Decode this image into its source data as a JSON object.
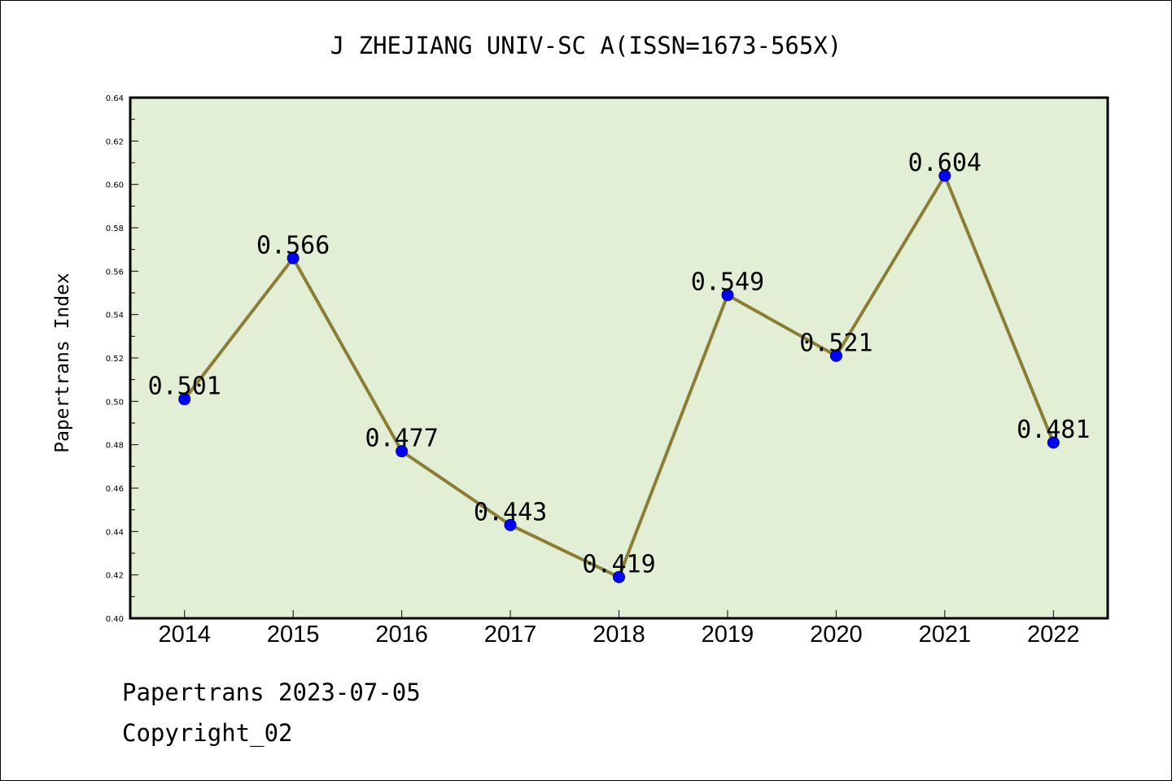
{
  "chart_data": {
    "type": "line",
    "title": "J ZHEJIANG UNIV-SC A(ISSN=1673-565X)",
    "xlabel": "",
    "ylabel": "Papertrans Index",
    "categories": [
      "2014",
      "2015",
      "2016",
      "2017",
      "2018",
      "2019",
      "2020",
      "2021",
      "2022"
    ],
    "series": [
      {
        "values": [
          0.501,
          0.566,
          0.477,
          0.443,
          0.419,
          0.549,
          0.521,
          0.604,
          0.481
        ]
      }
    ],
    "data_labels": [
      "0.501",
      "0.566",
      "0.477",
      "0.443",
      "0.419",
      "0.549",
      "0.521",
      "0.604",
      "0.481"
    ],
    "ylim": [
      0.4,
      0.64
    ],
    "yticks": [
      "0.40",
      "0.42",
      "0.44",
      "0.46",
      "0.48",
      "0.50",
      "0.52",
      "0.54",
      "0.56",
      "0.58",
      "0.60",
      "0.62",
      "0.64"
    ],
    "grid": false,
    "legend": "none",
    "colors": {
      "plot_background": "#e2efd5",
      "line": "#8b7d36",
      "marker": "#0000ff"
    }
  },
  "footer": {
    "source": "Papertrans 2023-07-05",
    "copyright": "Copyright_02"
  }
}
